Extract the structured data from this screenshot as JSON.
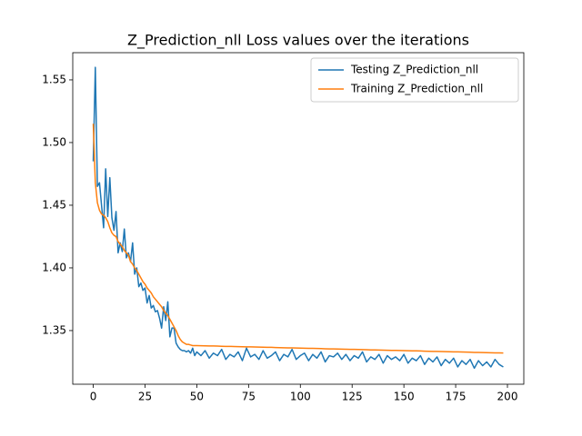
{
  "chart_data": {
    "type": "line",
    "title": "Z_Prediction_nll Loss values over the iterations",
    "x": [
      0,
      1,
      2,
      3,
      4,
      5,
      6,
      7,
      8,
      9,
      10,
      11,
      12,
      13,
      14,
      15,
      16,
      17,
      18,
      19,
      20,
      21,
      22,
      23,
      24,
      25,
      26,
      27,
      28,
      29,
      30,
      31,
      32,
      33,
      34,
      35,
      36,
      37,
      38,
      39,
      40,
      41,
      42,
      43,
      44,
      45,
      46,
      47,
      48,
      49,
      50,
      52,
      54,
      56,
      58,
      60,
      62,
      64,
      66,
      68,
      70,
      72,
      74,
      76,
      78,
      80,
      82,
      84,
      86,
      88,
      90,
      92,
      94,
      96,
      98,
      100,
      102,
      104,
      106,
      108,
      110,
      112,
      114,
      116,
      118,
      120,
      122,
      124,
      126,
      128,
      130,
      132,
      134,
      136,
      138,
      140,
      142,
      144,
      146,
      148,
      150,
      152,
      154,
      156,
      158,
      160,
      162,
      164,
      166,
      168,
      170,
      172,
      174,
      176,
      178,
      180,
      182,
      184,
      186,
      188,
      190,
      192,
      194,
      196,
      198
    ],
    "series": [
      {
        "name": "Testing Z_Prediction_nll",
        "color": "#1f77b4",
        "values": [
          1.485,
          1.56,
          1.465,
          1.468,
          1.45,
          1.432,
          1.479,
          1.441,
          1.472,
          1.44,
          1.43,
          1.445,
          1.412,
          1.42,
          1.413,
          1.431,
          1.408,
          1.412,
          1.405,
          1.42,
          1.395,
          1.4,
          1.385,
          1.388,
          1.382,
          1.384,
          1.372,
          1.378,
          1.368,
          1.37,
          1.365,
          1.366,
          1.36,
          1.352,
          1.369,
          1.358,
          1.373,
          1.345,
          1.352,
          1.352,
          1.34,
          1.337,
          1.335,
          1.334,
          1.334,
          1.333,
          1.334,
          1.332,
          1.336,
          1.33,
          1.333,
          1.33,
          1.334,
          1.328,
          1.332,
          1.33,
          1.335,
          1.327,
          1.331,
          1.329,
          1.333,
          1.326,
          1.336,
          1.329,
          1.331,
          1.327,
          1.334,
          1.328,
          1.33,
          1.333,
          1.326,
          1.331,
          1.329,
          1.335,
          1.327,
          1.33,
          1.332,
          1.326,
          1.331,
          1.328,
          1.333,
          1.325,
          1.33,
          1.329,
          1.332,
          1.327,
          1.331,
          1.326,
          1.33,
          1.328,
          1.333,
          1.325,
          1.329,
          1.327,
          1.331,
          1.324,
          1.33,
          1.327,
          1.329,
          1.326,
          1.331,
          1.324,
          1.328,
          1.326,
          1.33,
          1.323,
          1.328,
          1.325,
          1.329,
          1.322,
          1.327,
          1.324,
          1.328,
          1.321,
          1.326,
          1.323,
          1.327,
          1.32,
          1.326,
          1.322,
          1.325,
          1.321,
          1.327,
          1.323,
          1.321
        ]
      },
      {
        "name": "Training Z_Prediction_nll",
        "color": "#ff7f0e",
        "values": [
          1.515,
          1.468,
          1.452,
          1.446,
          1.443,
          1.442,
          1.44,
          1.437,
          1.432,
          1.428,
          1.426,
          1.425,
          1.421,
          1.419,
          1.417,
          1.414,
          1.412,
          1.41,
          1.405,
          1.403,
          1.4,
          1.398,
          1.395,
          1.392,
          1.389,
          1.387,
          1.384,
          1.382,
          1.38,
          1.377,
          1.375,
          1.373,
          1.371,
          1.369,
          1.366,
          1.364,
          1.362,
          1.359,
          1.356,
          1.353,
          1.35,
          1.346,
          1.343,
          1.341,
          1.34,
          1.339,
          1.339,
          1.3385,
          1.338,
          1.338,
          1.338,
          1.3379,
          1.3378,
          1.3377,
          1.3377,
          1.3376,
          1.3375,
          1.3374,
          1.3374,
          1.3373,
          1.3372,
          1.3371,
          1.337,
          1.337,
          1.3369,
          1.3368,
          1.3367,
          1.3366,
          1.3366,
          1.3365,
          1.3364,
          1.3363,
          1.3362,
          1.3362,
          1.3361,
          1.336,
          1.3359,
          1.3358,
          1.3358,
          1.3357,
          1.3356,
          1.3355,
          1.3354,
          1.3354,
          1.3353,
          1.3352,
          1.3351,
          1.335,
          1.335,
          1.3349,
          1.3348,
          1.3347,
          1.3346,
          1.3346,
          1.3345,
          1.3344,
          1.3343,
          1.3342,
          1.3342,
          1.3341,
          1.334,
          1.3339,
          1.3338,
          1.3338,
          1.3337,
          1.3336,
          1.3335,
          1.3334,
          1.3334,
          1.3333,
          1.3332,
          1.3331,
          1.333,
          1.333,
          1.3329,
          1.3328,
          1.3327,
          1.3326,
          1.3326,
          1.3325,
          1.3324,
          1.3323,
          1.3322,
          1.3322,
          1.3321
        ]
      }
    ],
    "xlim": [
      -9.9,
      207.9
    ],
    "xticks": [
      0,
      25,
      50,
      75,
      100,
      125,
      150,
      175,
      200
    ],
    "ylim": [
      1.3072,
      1.5717
    ],
    "yticks": [
      1.35,
      {
        "value": 1.4,
        "label": "1.40"
      },
      1.45,
      {
        "value": 1.5,
        "label": "1.50"
      },
      1.55
    ],
    "legend": "upper right"
  }
}
